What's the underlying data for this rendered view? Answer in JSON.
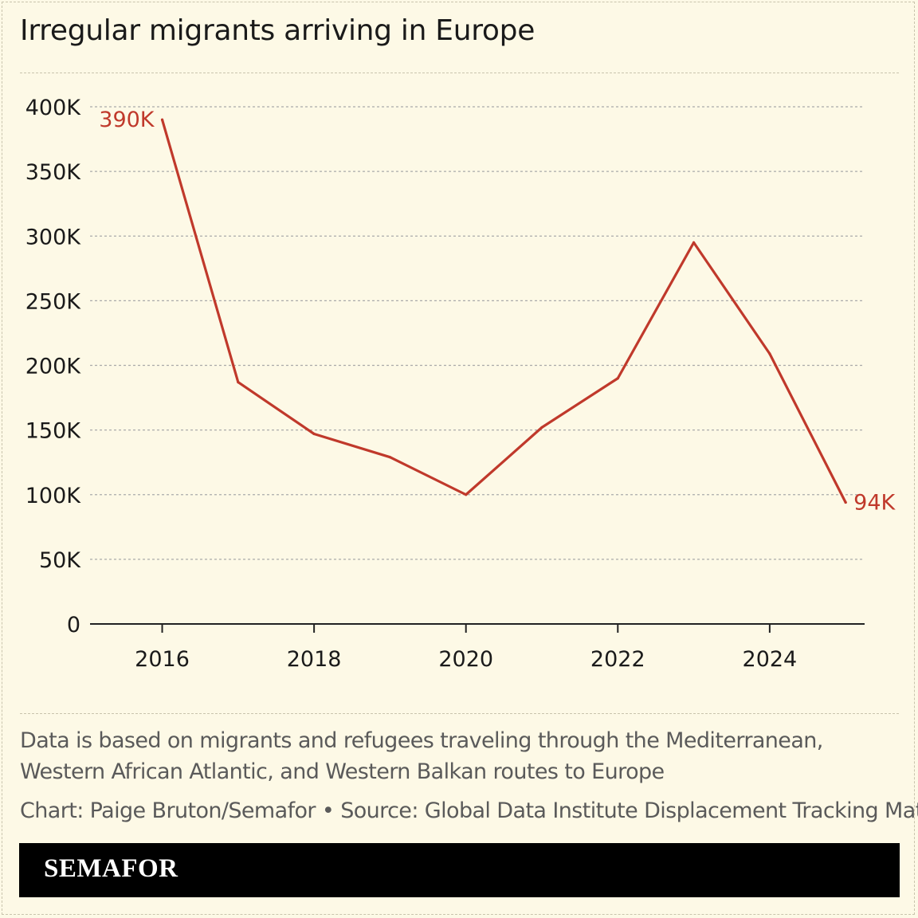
{
  "title": "Irregular migrants arriving in Europe",
  "chart_data": {
    "type": "line",
    "title": "Irregular migrants arriving in Europe",
    "xlabel": "",
    "ylabel": "",
    "x": [
      2016,
      2017,
      2018,
      2019,
      2020,
      2021,
      2022,
      2023,
      2024,
      2025
    ],
    "series": [
      {
        "values": [
          390000,
          187000,
          147000,
          129000,
          100000,
          152000,
          190000,
          295000,
          209000,
          94000
        ],
        "color": "#c0392b"
      }
    ],
    "xticks": [
      2016,
      2018,
      2020,
      2022,
      2024
    ],
    "xtick_labels": [
      "2016",
      "2018",
      "2020",
      "2022",
      "2024"
    ],
    "yticks": [
      0,
      50000,
      100000,
      150000,
      200000,
      250000,
      300000,
      350000,
      400000
    ],
    "ytick_labels": [
      "0",
      "50K",
      "100K",
      "150K",
      "200K",
      "250K",
      "300K",
      "350K",
      "400K"
    ],
    "ylim": [
      0,
      400000
    ],
    "xlim": [
      2015.05,
      2025.25
    ],
    "grid": "horizontal-dashed",
    "annotations": [
      {
        "x": 2016,
        "y": 390000,
        "text": "390K",
        "position": "left"
      },
      {
        "x": 2025,
        "y": 94000,
        "text": "94K",
        "position": "right"
      }
    ]
  },
  "note": "Data is based on migrants and refugees traveling through the Mediterranean, Western African Atlantic, and Western Balkan routes to Europe",
  "credit": "Chart: Paige Bruton/Semafor • Source: Global Data Institute Displacement Tracking Matrix",
  "footer": {
    "logo": "SEMAFOR"
  },
  "colors": {
    "background": "#fdf9e6",
    "line": "#c0392b",
    "grid": "#aaaaaa",
    "axis": "#222222",
    "text": "#1a1a1a",
    "muted": "#5a5a5a"
  }
}
